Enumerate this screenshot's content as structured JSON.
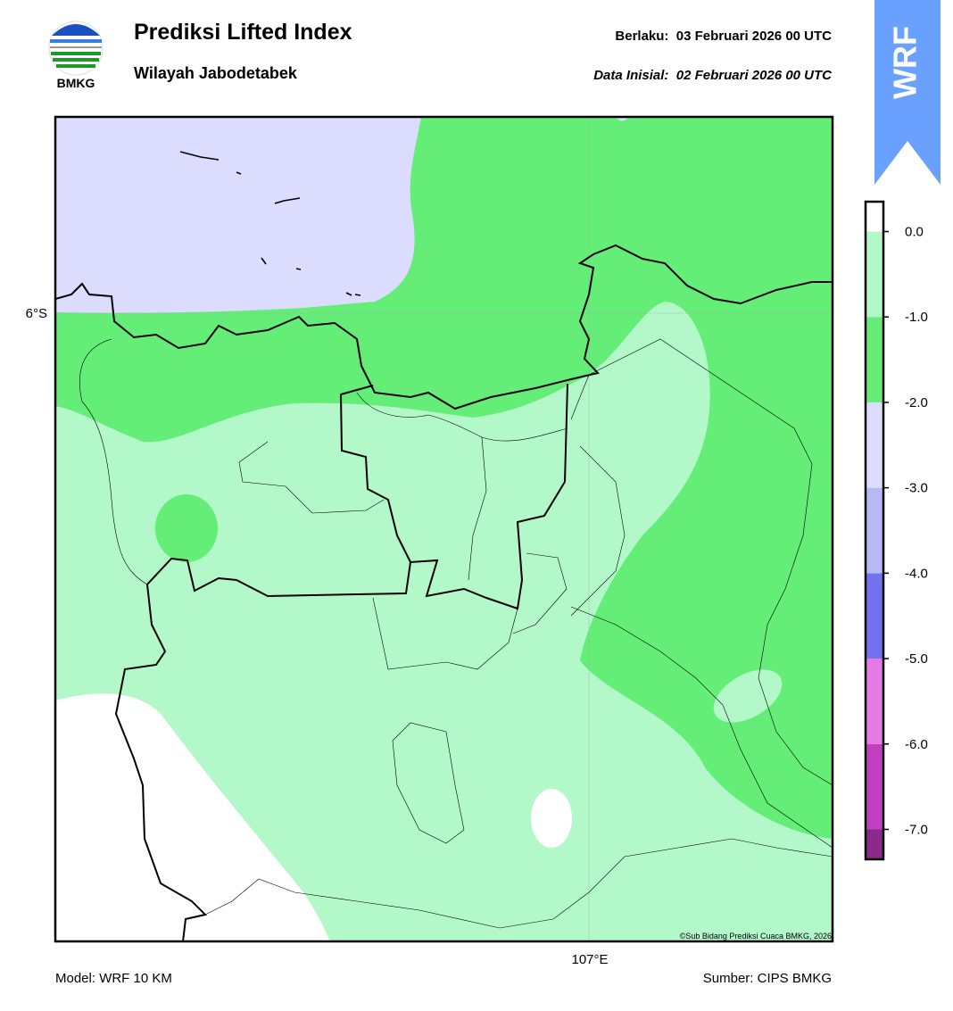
{
  "header": {
    "title": "Prediksi Lifted Index",
    "subtitle": "Wilayah Jabodetabek",
    "valid": "Berlaku:  03 Februari 2026 00 UTC",
    "init": "Data Inisial:  02 Februari 2026 00 UTC",
    "logo_text": "BMKG",
    "badge": "WRF"
  },
  "map": {
    "lat_label": "6°S",
    "lon_label": "107°E",
    "credit": "©Sub Bidang Prediksi Cuaca BMKG, 2026"
  },
  "colorbar": {
    "lim": [
      -7.35,
      0.35
    ],
    "bounds": [
      -7.35,
      -7,
      -6,
      -5,
      -4,
      -3,
      -2,
      -1,
      0,
      0.35
    ],
    "colors": [
      "#8a2a8a",
      "#c040c0",
      "#e47ae4",
      "#7272ef",
      "#b8b8f5",
      "#dcdcff",
      "#64ee78",
      "#b3f8c8",
      "#ffffff"
    ],
    "ticks": [
      {
        "value": 0,
        "label": "0.0"
      },
      {
        "value": -1,
        "label": "-1.0"
      },
      {
        "value": -2,
        "label": "-2.0"
      },
      {
        "value": -3,
        "label": "-3.0"
      },
      {
        "value": -4,
        "label": "-4.0"
      },
      {
        "value": -5,
        "label": "-5.0"
      },
      {
        "value": -6,
        "label": "-6.0"
      },
      {
        "value": -7,
        "label": "-7.0"
      }
    ]
  },
  "footer": {
    "model": "Model: WRF 10 KM",
    "source": "Sumber: CIPS BMKG"
  }
}
